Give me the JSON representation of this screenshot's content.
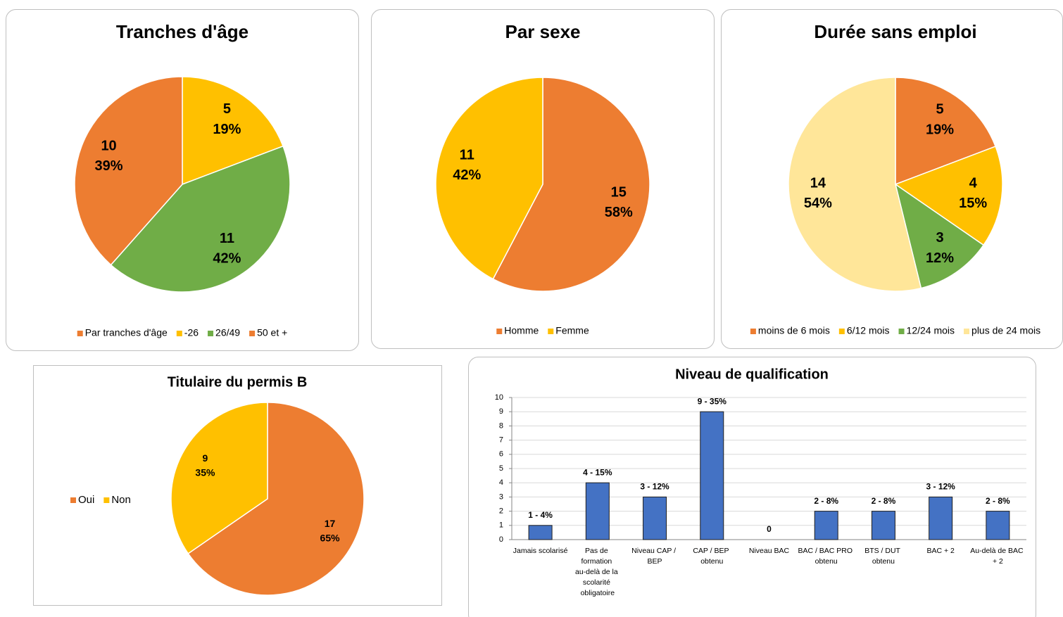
{
  "chart_data": [
    {
      "type": "pie",
      "title": "Tranches d'âge",
      "series_name": "Par tranches d'âge",
      "series_name_color": "#ed7d31",
      "categories": [
        "-26",
        "26/49",
        "50 et +"
      ],
      "values": [
        5,
        11,
        10
      ],
      "percent_labels": [
        "19%",
        "42%",
        "39%"
      ],
      "colors": [
        "#ffc000",
        "#70ad47",
        "#ed7d31"
      ],
      "legend": "bottom"
    },
    {
      "type": "pie",
      "title": "Par sexe",
      "categories": [
        "Homme",
        "Femme"
      ],
      "values": [
        15,
        11
      ],
      "percent_labels": [
        "58%",
        "42%"
      ],
      "colors": [
        "#ed7d31",
        "#ffc000"
      ],
      "legend": "bottom"
    },
    {
      "type": "pie",
      "title": "Durée sans emploi",
      "categories": [
        "moins de 6 mois",
        "6/12 mois",
        "12/24 mois",
        "plus de 24 mois"
      ],
      "values": [
        5,
        4,
        3,
        14
      ],
      "percent_labels": [
        "19%",
        "15%",
        "12%",
        "54%"
      ],
      "colors": [
        "#ed7d31",
        "#ffc000",
        "#70ad47",
        "#ffe699"
      ],
      "legend": "bottom"
    },
    {
      "type": "pie",
      "title": "Titulaire du permis B",
      "categories": [
        "Oui",
        "Non"
      ],
      "values": [
        17,
        9
      ],
      "percent_labels": [
        "65%",
        "35%"
      ],
      "colors": [
        "#ed7d31",
        "#ffc000"
      ],
      "legend": "left"
    },
    {
      "type": "bar",
      "title": "Niveau de qualification",
      "categories": [
        "Jamais scolarisé",
        "Pas de formation au-delà de la scolarité obligatoire",
        "Niveau CAP / BEP",
        "CAP / BEP obtenu",
        "Niveau BAC",
        "BAC / BAC PRO obtenu",
        "BTS / DUT obtenu",
        "BAC + 2",
        "Au-delà de BAC + 2"
      ],
      "values": [
        1,
        4,
        3,
        9,
        0,
        2,
        2,
        3,
        2
      ],
      "value_labels": [
        "1 - 4%",
        "4 - 15%",
        "3 - 12%",
        "9 - 35%",
        "0",
        "2 - 8%",
        "2 - 8%",
        "3 - 12%",
        "2 - 8%"
      ],
      "color": "#4472c4",
      "ylim": [
        0,
        10
      ],
      "yticks": [
        0,
        1,
        2,
        3,
        4,
        5,
        6,
        7,
        8,
        9,
        10
      ],
      "grid": true
    }
  ]
}
